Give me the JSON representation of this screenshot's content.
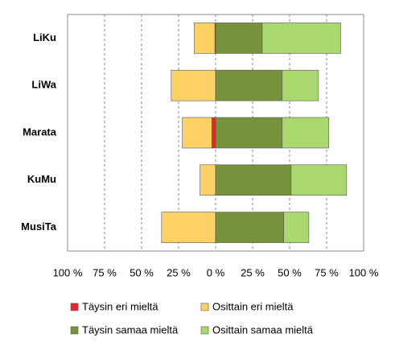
{
  "chart_data": {
    "type": "diverging_bar",
    "categories": [
      "LiKu",
      "LiWa",
      "Marata",
      "KuMu",
      "MusiTa"
    ],
    "series": [
      {
        "name": "Täysin eri mieltä",
        "color": "#e8262b",
        "values": [
          -0.5,
          0,
          -2.5,
          0,
          0
        ]
      },
      {
        "name": "Osittain eri mieltä",
        "color": "#fdd163",
        "values": [
          -14,
          -30,
          -20,
          -10.5,
          -36.5
        ]
      },
      {
        "name": "Täysin samaa mieltä",
        "color": "#76933c",
        "values": [
          31.5,
          45,
          45,
          51,
          46
        ]
      },
      {
        "name": "Osittain samaa mieltä",
        "color": "#a9d86e",
        "values": [
          53,
          24.5,
          31.5,
          37.5,
          17
        ]
      }
    ],
    "xlim": [
      -100,
      100
    ],
    "xticks": [
      {
        "value": -100,
        "label": "100 %"
      },
      {
        "value": -75,
        "label": "75 %"
      },
      {
        "value": -50,
        "label": "50 %"
      },
      {
        "value": -25,
        "label": "25 %"
      },
      {
        "value": 0,
        "label": "0 %"
      },
      {
        "value": 25,
        "label": "25 %"
      },
      {
        "value": 50,
        "label": "50 %"
      },
      {
        "value": 75,
        "label": "75 %"
      },
      {
        "value": 100,
        "label": "100 %"
      }
    ],
    "grid": true,
    "legend": "bottom"
  }
}
